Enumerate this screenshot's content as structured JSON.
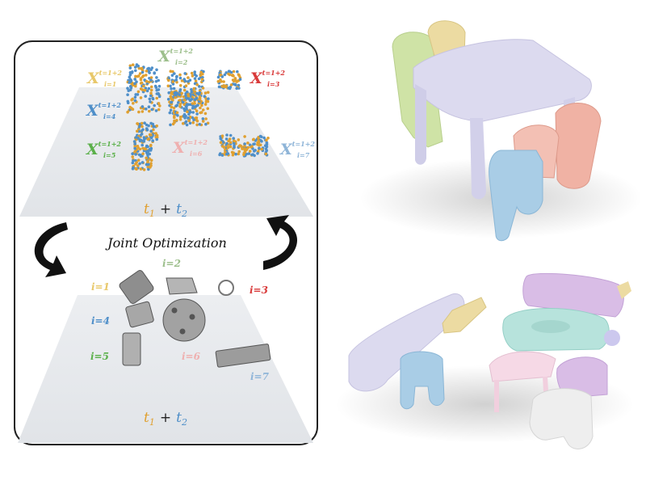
{
  "left_panel": {
    "top_labels": [
      {
        "id": "i1",
        "base": "X",
        "sup": "t=1+2",
        "sub": "i=1",
        "color": "#e8c86a"
      },
      {
        "id": "i2",
        "base": "X",
        "sup": "t=1+2",
        "sub": "i=2",
        "color": "#9dbf8c"
      },
      {
        "id": "i3",
        "base": "X",
        "sup": "t=1+2",
        "sub": "i=3",
        "color": "#d93a3a"
      },
      {
        "id": "i4",
        "base": "X",
        "sup": "t=1+2",
        "sub": "i=4",
        "color": "#4f8fc9"
      },
      {
        "id": "i5",
        "base": "X",
        "sup": "t=1+2",
        "sub": "i=5",
        "color": "#5bb04a"
      },
      {
        "id": "i6",
        "base": "X",
        "sup": "t=1+2",
        "sub": "i=6",
        "color": "#efb0b0"
      },
      {
        "id": "i7",
        "base": "X",
        "sup": "t=1+2",
        "sub": "i=7",
        "color": "#8fb5d8"
      }
    ],
    "top_formula": {
      "t1": "t",
      "t1_sub": "1",
      "plus": "+",
      "t2": "t",
      "t2_sub": "2"
    },
    "joint_label": "Joint Optimization",
    "bottom_labels": [
      {
        "id": "b1",
        "text": "i=1",
        "color": "#e8c86a"
      },
      {
        "id": "b2",
        "text": "i=2",
        "color": "#9dbf8c"
      },
      {
        "id": "b3",
        "text": "i=3",
        "color": "#d93a3a"
      },
      {
        "id": "b4",
        "text": "i=4",
        "color": "#4f8fc9"
      },
      {
        "id": "b5",
        "text": "i=5",
        "color": "#5bb04a"
      },
      {
        "id": "b6",
        "text": "i=6",
        "color": "#efb0b0"
      },
      {
        "id": "b7",
        "text": "i=7",
        "color": "#8fb5d8"
      }
    ],
    "bottom_formula": {
      "t1": "t",
      "t1_sub": "1",
      "plus": "+",
      "t2": "t",
      "t2_sub": "2"
    }
  },
  "colors": {
    "t1": "#e0a030",
    "t2": "#4f8fc9",
    "panel_border": "#222222",
    "floor": "#e7eaee",
    "table_top": "#d8d6ee",
    "chair_green": "#cfe3a6",
    "chair_yellow": "#ecdba2",
    "chair_blue": "#a9cde6",
    "chair_pink": "#f0b2a4",
    "sofa_purple": "#d9bde6",
    "teal": "#b7e3dc",
    "pink_table": "#f6d9e6",
    "white_chair": "#eeeeee"
  }
}
